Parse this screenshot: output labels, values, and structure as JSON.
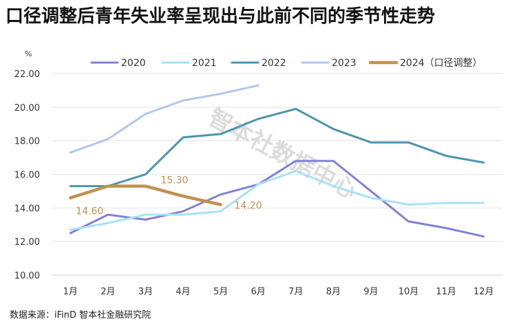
{
  "title": "口径调整后青年失业率呈现出与此前不同的季节性走势",
  "source": "数据来源：iFinD 智本社金融研究院",
  "watermark": "智本社数据中心",
  "chart_data": {
    "type": "line",
    "title": "口径调整后青年失业率呈现出与此前不同的季节性走势",
    "ylabel": "%",
    "xlabel": "",
    "ylim": [
      10,
      22
    ],
    "yticks": [
      "10.00",
      "12.00",
      "14.00",
      "16.00",
      "18.00",
      "20.00",
      "22.00"
    ],
    "categories": [
      "1月",
      "2月",
      "3月",
      "4月",
      "5月",
      "6月",
      "7月",
      "8月",
      "9月",
      "10月",
      "11月",
      "12月"
    ],
    "grid": true,
    "legend": "top",
    "series": [
      {
        "name": "2020",
        "color": "#8080d8",
        "width": 3,
        "values": [
          12.5,
          13.6,
          13.3,
          13.8,
          14.8,
          15.4,
          16.8,
          16.8,
          15.0,
          13.2,
          12.8,
          12.3
        ]
      },
      {
        "name": "2021",
        "color": "#a6e2f4",
        "width": 3,
        "values": [
          12.7,
          13.1,
          13.6,
          13.6,
          13.8,
          15.4,
          16.2,
          15.3,
          14.6,
          14.2,
          14.3,
          14.3
        ]
      },
      {
        "name": "2022",
        "color": "#4a95ad",
        "width": 3,
        "values": [
          15.3,
          15.3,
          16.0,
          18.2,
          18.4,
          19.3,
          19.9,
          18.7,
          17.9,
          17.9,
          17.1,
          16.7
        ]
      },
      {
        "name": "2023",
        "color": "#b2c6ee",
        "width": 3,
        "values": [
          17.3,
          18.1,
          19.6,
          20.4,
          20.8,
          21.3,
          null,
          null,
          null,
          null,
          null,
          null
        ]
      },
      {
        "name": "2024（口径调整）",
        "color": "#c0914f",
        "width": 4.5,
        "values": [
          14.6,
          15.3,
          15.3,
          14.7,
          14.2,
          null,
          null,
          null,
          null,
          null,
          null,
          null
        ]
      }
    ],
    "data_labels": [
      {
        "series": "2024（口径调整）",
        "index": 0,
        "text": "14.60"
      },
      {
        "series": "2024（口径调整）",
        "index": 2,
        "text": "15.30"
      },
      {
        "series": "2024（口径调整）",
        "index": 4,
        "text": "14.20"
      }
    ]
  }
}
